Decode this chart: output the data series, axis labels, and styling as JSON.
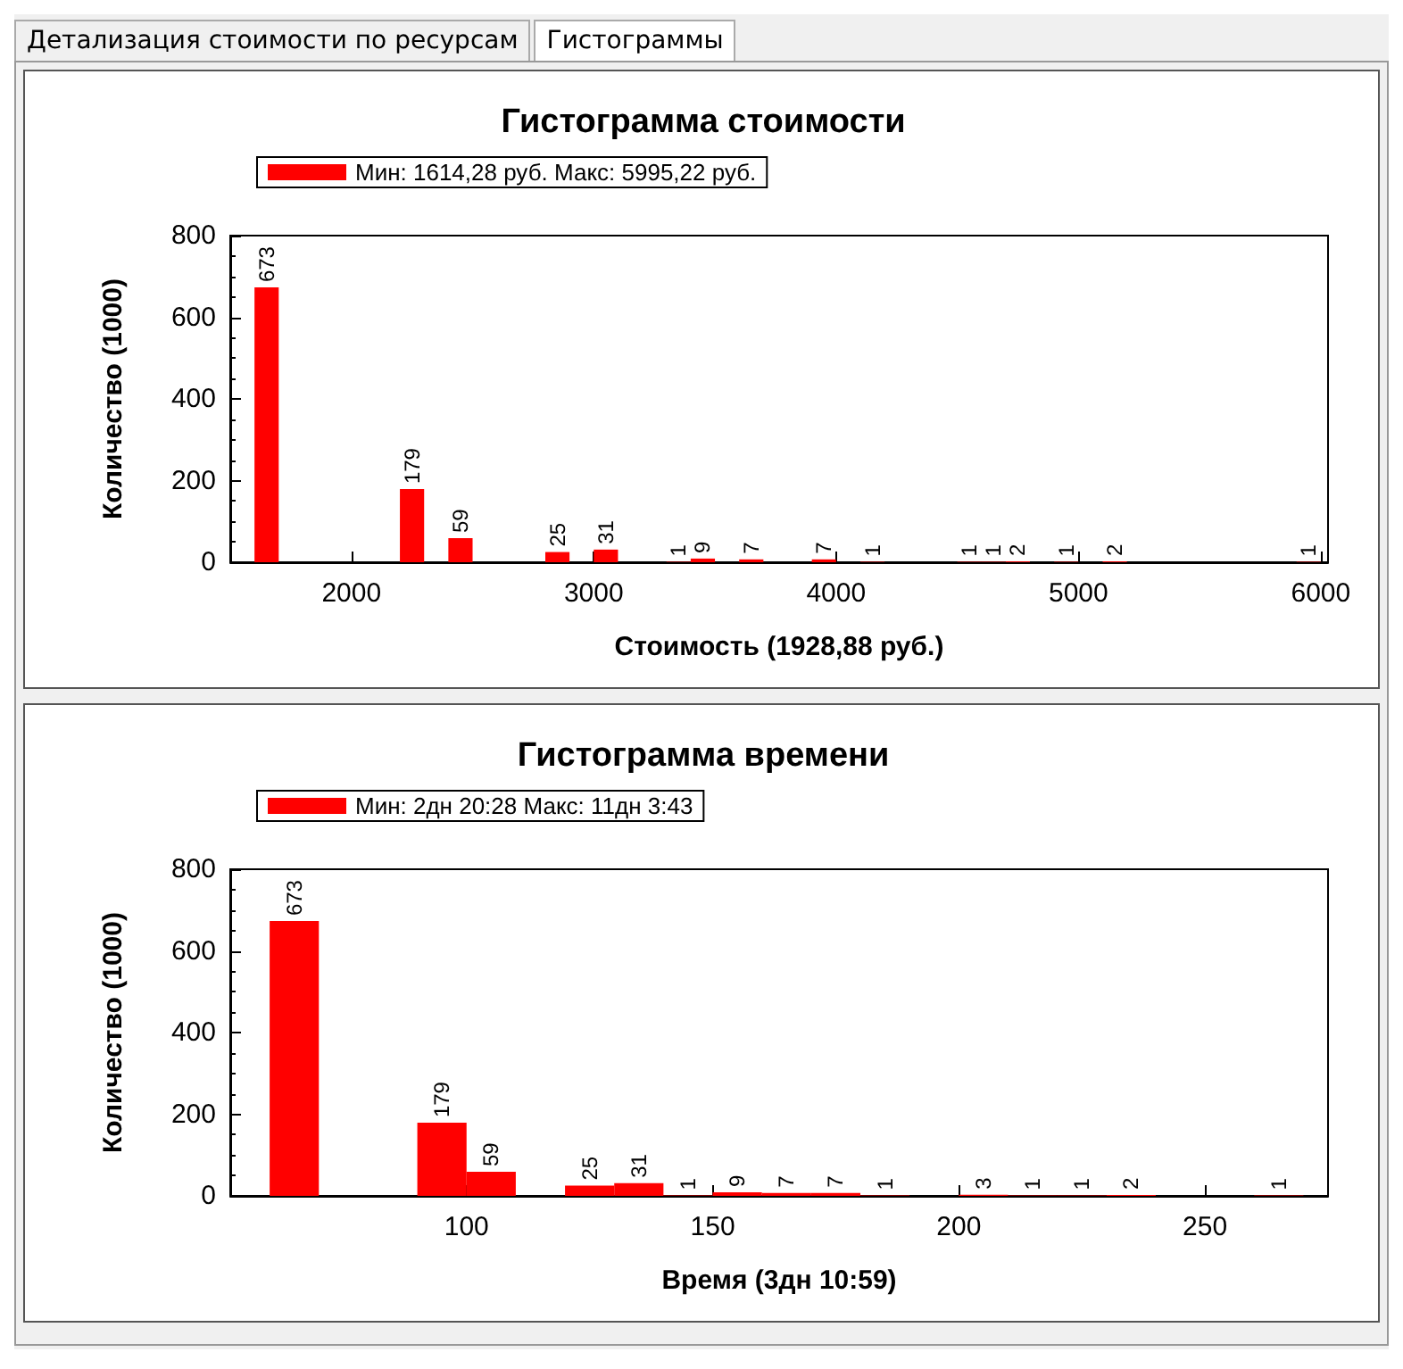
{
  "chart_data": [
    {
      "type": "histogram",
      "title": "Гистограмма стоимости",
      "xlabel": "Стоимость (1928,88 руб.)",
      "ylabel": "Количество (1000)",
      "annotations": [
        "Детализация стоимости по ресурсам",
        "Гистограммы"
      ],
      "bins": [
        1600,
        1700,
        1800,
        1900,
        2000,
        2100,
        2200,
        2300,
        2400,
        2500,
        2600,
        2700,
        2800,
        2900,
        3000,
        3100,
        3200,
        3300,
        3400,
        3500,
        3600,
        3700,
        3800,
        3900,
        4000,
        4100,
        4200,
        4300,
        4400,
        4500,
        4600,
        4700,
        4800,
        4900,
        5000,
        5100,
        5200,
        5300,
        5400,
        5500,
        5600,
        5700,
        5800,
        5900,
        6000
      ],
      "series": [
        {
          "name": "Мин: 1614,28 руб. Макс: 5995,22 руб.",
          "color": "#ff0000",
          "values": [
            673,
            0,
            0,
            0,
            0,
            0,
            179,
            0,
            59,
            0,
            0,
            0,
            25,
            0,
            31,
            0,
            0,
            1,
            9,
            0,
            7,
            0,
            0,
            7,
            0,
            1,
            0,
            0,
            0,
            1,
            1,
            2,
            0,
            1,
            0,
            2,
            0,
            0,
            0,
            0,
            0,
            0,
            0,
            1
          ],
          "value_labels": [
            "673",
            null,
            null,
            null,
            null,
            null,
            "179",
            null,
            "59",
            null,
            null,
            null,
            "25",
            null,
            "31",
            null,
            null,
            "1",
            "9",
            null,
            "7",
            null,
            null,
            "7",
            null,
            "1",
            null,
            null,
            null,
            "1",
            "1",
            "2",
            null,
            "1",
            null,
            "2",
            null,
            null,
            null,
            null,
            null,
            null,
            null,
            "1"
          ]
        }
      ],
      "xlim": [
        1500,
        6030
      ],
      "xticks": [
        2000,
        3000,
        4000,
        5000,
        6000
      ],
      "ylim": [
        0,
        800
      ],
      "yticks": [
        0,
        200,
        400,
        600,
        800
      ],
      "legend": "top left",
      "grid": false
    },
    {
      "type": "histogram",
      "title": "Гистограмма времени",
      "xlabel": "Время (3дн 10:59)",
      "ylabel": "Количество (1000)",
      "bins": [
        60,
        70,
        80,
        90,
        100,
        110,
        120,
        130,
        140,
        150,
        160,
        170,
        180,
        190,
        200,
        210,
        220,
        230,
        240,
        250,
        260,
        270
      ],
      "series": [
        {
          "name": "Мин: 2дн 20:28 Макс: 11дн 3:43",
          "color": "#ff0000",
          "values": [
            673,
            0,
            0,
            179,
            59,
            0,
            25,
            31,
            1,
            9,
            7,
            7,
            1,
            0,
            3,
            1,
            1,
            2,
            0,
            0,
            1
          ],
          "value_labels": [
            "673",
            null,
            null,
            "179",
            "59",
            null,
            "25",
            "31",
            "1",
            "9",
            "7",
            "7",
            "1",
            null,
            "3",
            "1",
            "1",
            "2",
            null,
            null,
            "1"
          ]
        }
      ],
      "xlim": [
        52,
        275
      ],
      "xticks": [
        100,
        150,
        200,
        250
      ],
      "ylim": [
        0,
        800
      ],
      "yticks": [
        0,
        200,
        400,
        600,
        800
      ],
      "legend": "top left",
      "grid": false
    }
  ]
}
